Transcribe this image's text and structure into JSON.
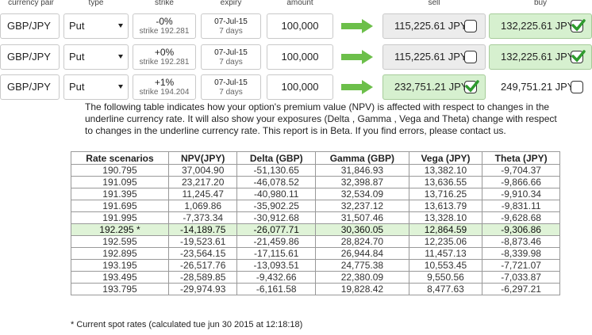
{
  "columns": {
    "pair": "currency pair",
    "type": "type",
    "strike": "strike",
    "expiry": "expiry",
    "amount": "amount",
    "sell": "sell",
    "buy": "buy"
  },
  "colors": {
    "arrow": "#6cbf4a",
    "green_box": "#d6f0cf",
    "gray_box": "#ececec",
    "spot_row": "#dff3d7"
  },
  "options": [
    {
      "pair": "GBP/JPY",
      "type": "Put",
      "strike_pct": "-0%",
      "strike_label": "strike 192.281",
      "expiry_date": "07-Jul-15",
      "expiry_days": "7 days",
      "amount": "100,000",
      "sell": "115,225.61 JPY",
      "buy": "132,225.61 JPY",
      "sell_checked": false,
      "buy_checked": true
    },
    {
      "pair": "GBP/JPY",
      "type": "Put",
      "strike_pct": "+0%",
      "strike_label": "strike 192.281",
      "expiry_date": "07-Jul-15",
      "expiry_days": "7 days",
      "amount": "100,000",
      "sell": "115,225.61 JPY",
      "buy": "132,225.61 JPY",
      "sell_checked": false,
      "buy_checked": true
    },
    {
      "pair": "GBP/JPY",
      "type": "Put",
      "strike_pct": "+1%",
      "strike_label": "strike 194.204",
      "expiry_date": "07-Jul-15",
      "expiry_days": "7 days",
      "amount": "100,000",
      "sell": "232,751.21 JPY",
      "buy": "249,751.21 JPY",
      "sell_checked": true,
      "buy_checked": false
    }
  ],
  "description": "The following table indicates how your option's premium value (NPV) is affected with respect to changes in the underline currency rate. It will also show your exposures (Delta , Gamma , Vega and Theta) change with respect to changes in the underline currency rate. This report is in Beta. If you find errors, please contact us.",
  "table": {
    "headers": [
      "Rate scenarios",
      "NPV(JPY)",
      "Delta (GBP)",
      "Gamma (GBP)",
      "Vega (JPY)",
      "Theta (JPY)"
    ],
    "rows": [
      [
        "190.795",
        "37,004.90",
        "-51,130.65",
        "31,846.93",
        "13,382.10",
        "-9,704.37"
      ],
      [
        "191.095",
        "23,217.20",
        "-46,078.52",
        "32,398.87",
        "13,636.55",
        "-9,866.66"
      ],
      [
        "191.395",
        "11,245.47",
        "-40,980.11",
        "32,534.09",
        "13,716.25",
        "-9,910.34"
      ],
      [
        "191.695",
        "1,069.86",
        "-35,902.25",
        "32,237.12",
        "13,613.79",
        "-9,831.11"
      ],
      [
        "191.995",
        "-7,373.34",
        "-30,912.68",
        "31,507.46",
        "13,328.10",
        "-9,628.68"
      ],
      [
        "192.295 *",
        "-14,189.75",
        "-26,077.71",
        "30,360.05",
        "12,864.59",
        "-9,306.86"
      ],
      [
        "192.595",
        "-19,523.61",
        "-21,459.86",
        "28,824.70",
        "12,235.06",
        "-8,873.46"
      ],
      [
        "192.895",
        "-23,564.15",
        "-17,115.61",
        "26,944.84",
        "11,457.13",
        "-8,339.98"
      ],
      [
        "193.195",
        "-26,517.76",
        "-13,093.51",
        "24,775.38",
        "10,553.45",
        "-7,721.07"
      ],
      [
        "193.495",
        "-28,589.85",
        "-9,432.66",
        "22,380.09",
        "9,550.56",
        "-7,033.87"
      ],
      [
        "193.795",
        "-29,974.93",
        "-6,161.58",
        "19,828.42",
        "8,477.63",
        "-6,297.21"
      ]
    ],
    "highlight_row": 5
  },
  "footnote": "* Current spot rates (calculated tue jun 30 2015 at 12:18:18)"
}
